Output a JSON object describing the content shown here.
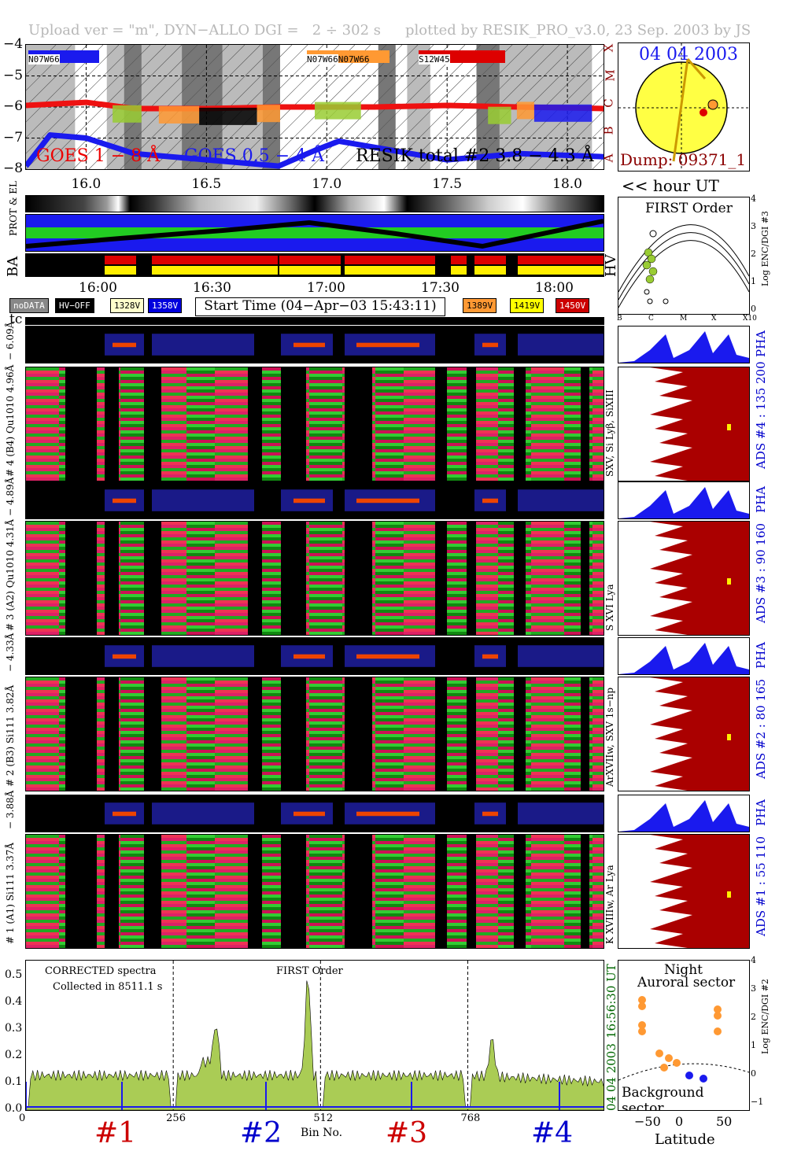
{
  "header": {
    "left": "Upload ver = \"m\", DYN−ALLO DGI =   2 ÷ 302 s",
    "right": "plotted by RESIK_PRO_v3.0, 23 Sep. 2003 by JS"
  },
  "goes": {
    "series_labels": {
      "goes18": "GOES 1 − 8 Å",
      "goes054": "GOES 0.5 − 4 Å",
      "resik": "RESIK total #2  3.8 − 4.3 Å"
    },
    "region_labels": [
      "N07W66",
      "N07W66",
      "N07W66",
      "S12W45"
    ],
    "y_ticks": [
      "−4",
      "−5",
      "−6",
      "−7",
      "−8"
    ],
    "class_letters": [
      "X",
      "M",
      "C",
      "B",
      "A"
    ],
    "x_ticks": [
      "16.0",
      "16.5",
      "17.0",
      "17.5",
      "18.0"
    ],
    "axis_note": "<< hour UT"
  },
  "sun": {
    "date": "04 04 2003",
    "dump": "Dump: 09371_1"
  },
  "orbit": {
    "label_prot": "PROT & EL",
    "label_ba": "BA",
    "label_hv": "HV",
    "time_ticks": [
      "16:00",
      "16:30",
      "17:00",
      "17:30",
      "18:00"
    ]
  },
  "legend": {
    "chips": [
      {
        "label": "noDATA",
        "bg": "#888888",
        "fg": "#ffffff"
      },
      {
        "label": "HV−OFF",
        "bg": "#000000",
        "fg": "#ffffff"
      },
      {
        "label": "1328V",
        "bg": "#ffffcc",
        "fg": "#000000"
      },
      {
        "label": "1358V",
        "bg": "#0000dd",
        "fg": "#ffffff"
      },
      {
        "label": "1389V",
        "bg": "#ff9933",
        "fg": "#000000"
      },
      {
        "label": "1419V",
        "bg": "#ffff00",
        "fg": "#000000"
      },
      {
        "label": "1450V",
        "bg": "#cc0000",
        "fg": "#ffffff"
      }
    ],
    "start_time": "Start Time (04−Apr−03 15:43:11)"
  },
  "tc_label": "tc",
  "first_order": {
    "title": "FIRST Order",
    "y_ticks": [
      "4",
      "3",
      "2",
      "1",
      "0"
    ],
    "x_ticks": [
      "B",
      "C",
      "M",
      "X",
      "X10"
    ],
    "ylabel": "Log ENC/DGI #3"
  },
  "channels": [
    {
      "pha_label": "− 6.09Å",
      "main_label": "# 4 (B4) Qu1010 4.96Å",
      "right_label": "SXV, Si Lyβ, SiXIII",
      "ads_label": "ADS #4 :  135 200"
    },
    {
      "pha_label": "− 4.89Å",
      "main_label": "# 3 (A2) Qu1010 4.31Å",
      "right_label": "S XVI Lya",
      "ads_label": "ADS #3 :  90 160"
    },
    {
      "pha_label": "− 4.33Å",
      "main_label": "# 2 (B3) Si111  3.82Å",
      "right_label": "ArXVIIw, SXV 1s−np",
      "ads_label": "ADS #2 :  80 165"
    },
    {
      "pha_label": "− 3.88Å",
      "main_label": "# 1 (A1) Si111  3.37Å",
      "right_label": "K XVIIIw, Ar Lya",
      "ads_label": "ADS #1 :  55 110"
    }
  ],
  "pha_word": "PHA",
  "spectrum": {
    "note1": "CORRECTED spectra",
    "note2": "Collected in  8511.1 s",
    "order": "FIRST Order",
    "y_ticks": [
      "0.5",
      "0.4",
      "0.3",
      "0.2",
      "0.1",
      "0.0"
    ],
    "x_ticks": [
      "0",
      "256",
      "512",
      "768"
    ],
    "xlabel": "Bin No.",
    "channel_numbers": [
      "#1",
      "#2",
      "#3",
      "#4"
    ],
    "channel_colors": [
      "#cc0000",
      "#0000cc",
      "#cc0000",
      "#0000cc"
    ],
    "side_time": "16:56:30 UT",
    "side_date": "04 04 2003"
  },
  "auroral": {
    "title1": "Night",
    "title2": "Auroral sector",
    "bottom": "Background sector",
    "xlabel": "Latitude",
    "x_ticks": [
      "−50",
      "0",
      "50"
    ],
    "y_ticks": [
      "4",
      "3",
      "2",
      "1",
      "0",
      "−1"
    ],
    "ylabel": "Log ENC/DGI #2"
  },
  "chart_data": {
    "type": "line",
    "title": "",
    "xlabel": "hour UT",
    "ylabel": "",
    "xlim": [
      15.75,
      18.15
    ],
    "ylim": [
      -8,
      -4
    ],
    "series": [
      {
        "name": "GOES 1 − 8 Å",
        "x": [
          15.75,
          16.0,
          16.2,
          16.5,
          16.8,
          17.0,
          17.2,
          17.5,
          17.8,
          18.15
        ],
        "values": [
          -5.95,
          -5.85,
          -6.05,
          -6.05,
          -6.0,
          -6.0,
          -6.0,
          -5.95,
          -6.0,
          -6.05
        ]
      },
      {
        "name": "GOES 0.5 − 4 Å",
        "x": [
          15.75,
          15.85,
          16.0,
          16.2,
          16.5,
          16.8,
          16.95,
          17.05,
          17.2,
          17.5,
          17.8,
          18.15
        ],
        "values": [
          -7.9,
          -6.9,
          -7.0,
          -7.5,
          -7.7,
          -7.9,
          -7.4,
          -7.1,
          -7.3,
          -7.7,
          -7.5,
          -7.6
        ]
      }
    ]
  }
}
